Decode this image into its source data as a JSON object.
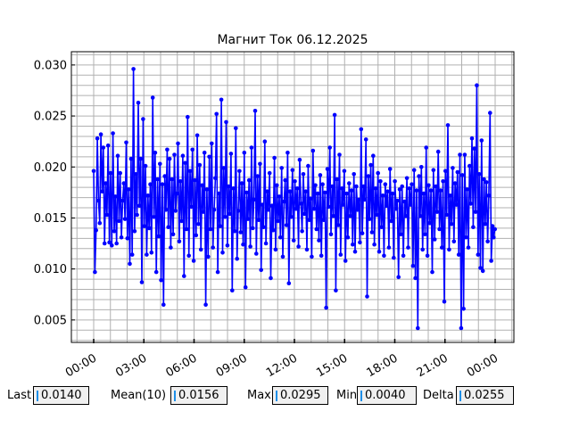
{
  "chart_data": {
    "type": "line",
    "title": "Магнит Ток 06.12.2025",
    "xlabel": "",
    "ylabel": "",
    "xlim": [
      "2025-12-06 00:00",
      "2025-12-07 00:00"
    ],
    "ylim": [
      0.0028,
      0.0313
    ],
    "x_ticks": [
      "00:00",
      "03:00",
      "06:00",
      "09:00",
      "12:00",
      "15:00",
      "18:00",
      "21:00",
      "00:00"
    ],
    "y_ticks": [
      "0.005",
      "0.010",
      "0.015",
      "0.020",
      "0.025",
      "0.030"
    ],
    "grid": true,
    "legend": "none",
    "series": [
      {
        "color": "#0000ff",
        "x_start": "2025-12-06 00:00",
        "x_end": "2025-12-06 23:59",
        "values": [
          0.0196,
          0.0097,
          0.0138,
          0.0228,
          0.0167,
          0.0145,
          0.0232,
          0.0176,
          0.0219,
          0.0125,
          0.0184,
          0.0153,
          0.0221,
          0.0126,
          0.0194,
          0.0123,
          0.0233,
          0.0137,
          0.0171,
          0.0125,
          0.0211,
          0.0147,
          0.0194,
          0.0131,
          0.0167,
          0.0184,
          0.0149,
          0.0224,
          0.013,
          0.0178,
          0.0105,
          0.0208,
          0.0114,
          0.0296,
          0.0137,
          0.0193,
          0.0153,
          0.0263,
          0.0162,
          0.0208,
          0.0087,
          0.0247,
          0.0142,
          0.0201,
          0.0114,
          0.0172,
          0.014,
          0.0183,
          0.0116,
          0.0268,
          0.0151,
          0.0214,
          0.0097,
          0.0188,
          0.0132,
          0.0203,
          0.0089,
          0.0183,
          0.0065,
          0.0191,
          0.0158,
          0.0217,
          0.0141,
          0.0208,
          0.0121,
          0.0188,
          0.0134,
          0.0212,
          0.0157,
          0.0174,
          0.0223,
          0.0127,
          0.0186,
          0.0147,
          0.0211,
          0.0093,
          0.0204,
          0.0139,
          0.0249,
          0.0113,
          0.0196,
          0.0161,
          0.0217,
          0.0108,
          0.0187,
          0.0133,
          0.0231,
          0.0144,
          0.0202,
          0.0119,
          0.0182,
          0.0156,
          0.0214,
          0.0065,
          0.0178,
          0.0112,
          0.021,
          0.0139,
          0.0223,
          0.0121,
          0.0158,
          0.0189,
          0.0252,
          0.0097,
          0.0174,
          0.0142,
          0.0266,
          0.0116,
          0.0199,
          0.0151,
          0.0244,
          0.0123,
          0.0181,
          0.0154,
          0.0213,
          0.0079,
          0.0179,
          0.0137,
          0.0238,
          0.011,
          0.0157,
          0.0196,
          0.0136,
          0.0184,
          0.0124,
          0.0214,
          0.0082,
          0.0175,
          0.0149,
          0.0187,
          0.0122,
          0.0219,
          0.014,
          0.0168,
          0.0255,
          0.0115,
          0.0191,
          0.0148,
          0.0203,
          0.0099,
          0.0163,
          0.0141,
          0.0225,
          0.0125,
          0.0176,
          0.0158,
          0.0194,
          0.0091,
          0.0162,
          0.0138,
          0.0209,
          0.0119,
          0.0182,
          0.0147,
          0.0171,
          0.0131,
          0.0199,
          0.0112,
          0.0166,
          0.0187,
          0.0143,
          0.0214,
          0.0086,
          0.0176,
          0.0151,
          0.0197,
          0.0128,
          0.0186,
          0.0159,
          0.0179,
          0.0122,
          0.0207,
          0.0164,
          0.0137,
          0.0193,
          0.0154,
          0.0176,
          0.0119,
          0.0201,
          0.0148,
          0.0169,
          0.0112,
          0.0216,
          0.0159,
          0.0182,
          0.0139,
          0.0174,
          0.0128,
          0.0192,
          0.0113,
          0.0183,
          0.0148,
          0.0175,
          0.0062,
          0.0198,
          0.0161,
          0.0219,
          0.0134,
          0.0181,
          0.0152,
          0.0251,
          0.0079,
          0.0188,
          0.0143,
          0.0212,
          0.0114,
          0.0179,
          0.0163,
          0.0196,
          0.0108,
          0.0174,
          0.0131,
          0.0184,
          0.0152,
          0.0177,
          0.0124,
          0.0193,
          0.0117,
          0.0181,
          0.0158,
          0.0168,
          0.0126,
          0.0237,
          0.0135,
          0.0181,
          0.0168,
          0.0227,
          0.0073,
          0.0191,
          0.0149,
          0.0202,
          0.0136,
          0.0211,
          0.0124,
          0.0179,
          0.0153,
          0.0194,
          0.0117,
          0.0186,
          0.0141,
          0.0172,
          0.0113,
          0.0183,
          0.0162,
          0.0176,
          0.0121,
          0.0198,
          0.0147,
          0.0174,
          0.0111,
          0.0186,
          0.0159,
          0.0167,
          0.0092,
          0.0178,
          0.0134,
          0.0181,
          0.0113,
          0.0166,
          0.0152,
          0.0189,
          0.0121,
          0.0179,
          0.0163,
          0.0183,
          0.0103,
          0.0197,
          0.0091,
          0.0177,
          0.0042,
          0.0191,
          0.0152,
          0.02,
          0.0119,
          0.0174,
          0.0134,
          0.0219,
          0.0113,
          0.0182,
          0.0145,
          0.0177,
          0.0097,
          0.0197,
          0.0129,
          0.0181,
          0.0156,
          0.0215,
          0.0139,
          0.0177,
          0.0121,
          0.0186,
          0.0068,
          0.0196,
          0.0153,
          0.0241,
          0.0119,
          0.0172,
          0.0144,
          0.0199,
          0.0127,
          0.0184,
          0.0163,
          0.0195,
          0.0114,
          0.0212,
          0.0042,
          0.0192,
          0.0061,
          0.0212,
          0.0131,
          0.0178,
          0.0121,
          0.0201,
          0.0164,
          0.0228,
          0.0141,
          0.0218,
          0.0156,
          0.028,
          0.0114,
          0.0193,
          0.0101,
          0.0226,
          0.0098,
          0.0188,
          0.0144,
          0.0185,
          0.0127,
          0.0172,
          0.0253,
          0.0108,
          0.0142,
          0.0131,
          0.0139
        ]
      }
    ]
  },
  "stats": {
    "last_label": "Last",
    "last_value": "0.0140",
    "mean_label": "Mean(10)",
    "mean_value": "0.0156",
    "max_label": "Max",
    "max_value": "0.0295",
    "min_label": "Min",
    "min_value": "0.0040",
    "delta_label": "Delta",
    "delta_value": "0.0255"
  }
}
